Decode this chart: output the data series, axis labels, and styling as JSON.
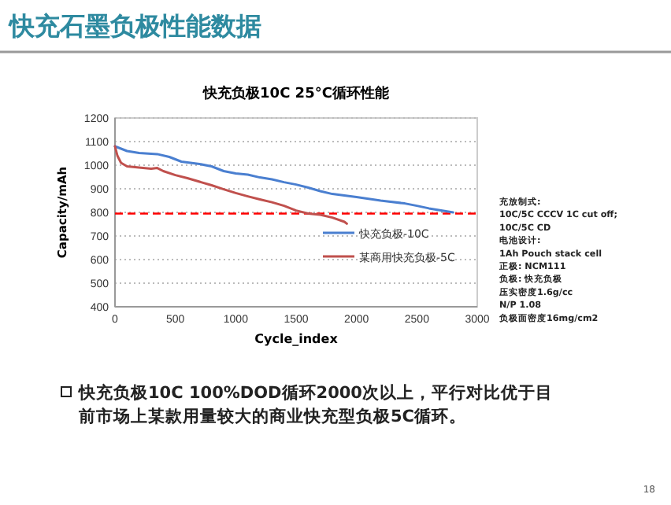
{
  "chart_data": {
    "type": "line",
    "title": "快充负极10C 25°C循环性能",
    "xlabel": "Cycle_index",
    "ylabel": "Capacity/mAh",
    "xlim": [
      0,
      3000
    ],
    "xticks": [
      0,
      500,
      1000,
      1500,
      2000,
      2500,
      3000
    ],
    "ylim": [
      400,
      1200
    ],
    "yticks": [
      400,
      500,
      600,
      700,
      800,
      900,
      1000,
      1100,
      1200
    ],
    "grid": "y",
    "legend": "right",
    "line_style": "solid",
    "marker": "none",
    "series": [
      {
        "name": "快充负极-10C",
        "color": "#4a7fd0",
        "x": [
          0,
          100,
          200,
          350,
          450,
          550,
          700,
          800,
          900,
          1000,
          1100,
          1200,
          1300,
          1400,
          1500,
          1600,
          1700,
          1800,
          2000,
          2200,
          2400,
          2500,
          2600,
          2700,
          2800
        ],
        "values": [
          1080,
          1060,
          1052,
          1047,
          1035,
          1015,
          1005,
          995,
          975,
          965,
          960,
          948,
          940,
          928,
          918,
          905,
          890,
          878,
          865,
          850,
          838,
          828,
          817,
          808,
          800
        ]
      },
      {
        "name": "某商用快充负极-5C",
        "color": "#c0504d",
        "x": [
          0,
          20,
          50,
          100,
          200,
          300,
          350,
          400,
          500,
          600,
          700,
          800,
          900,
          1000,
          1100,
          1200,
          1300,
          1400,
          1500,
          1600,
          1700,
          1800,
          1900,
          1920
        ],
        "values": [
          1080,
          1040,
          1010,
          995,
          990,
          985,
          988,
          975,
          958,
          945,
          930,
          915,
          898,
          882,
          868,
          855,
          843,
          828,
          808,
          795,
          790,
          778,
          760,
          752
        ]
      }
    ],
    "ref_lines": [
      {
        "axis": "y",
        "value": 795,
        "color": "#ff0000",
        "line_style": "dashed"
      }
    ],
    "annotations": [
      "快充石墨负极性能数据",
      "充放制式:",
      "10C/5C CCCV 1C cut off;",
      "10C/5C CD",
      "电池设计:",
      "1Ah Pouch stack cell",
      "正极: NCM111",
      "负极: 快充负极",
      "压实密度1.6g/cc",
      "N/P 1.08",
      "负极面密度16mg/cm2",
      "快充负极10C 100%DOD循环2000次以上，平行对比优于目前市场上某款用量较大的商业快充型负极5C循环。",
      "18"
    ]
  }
}
